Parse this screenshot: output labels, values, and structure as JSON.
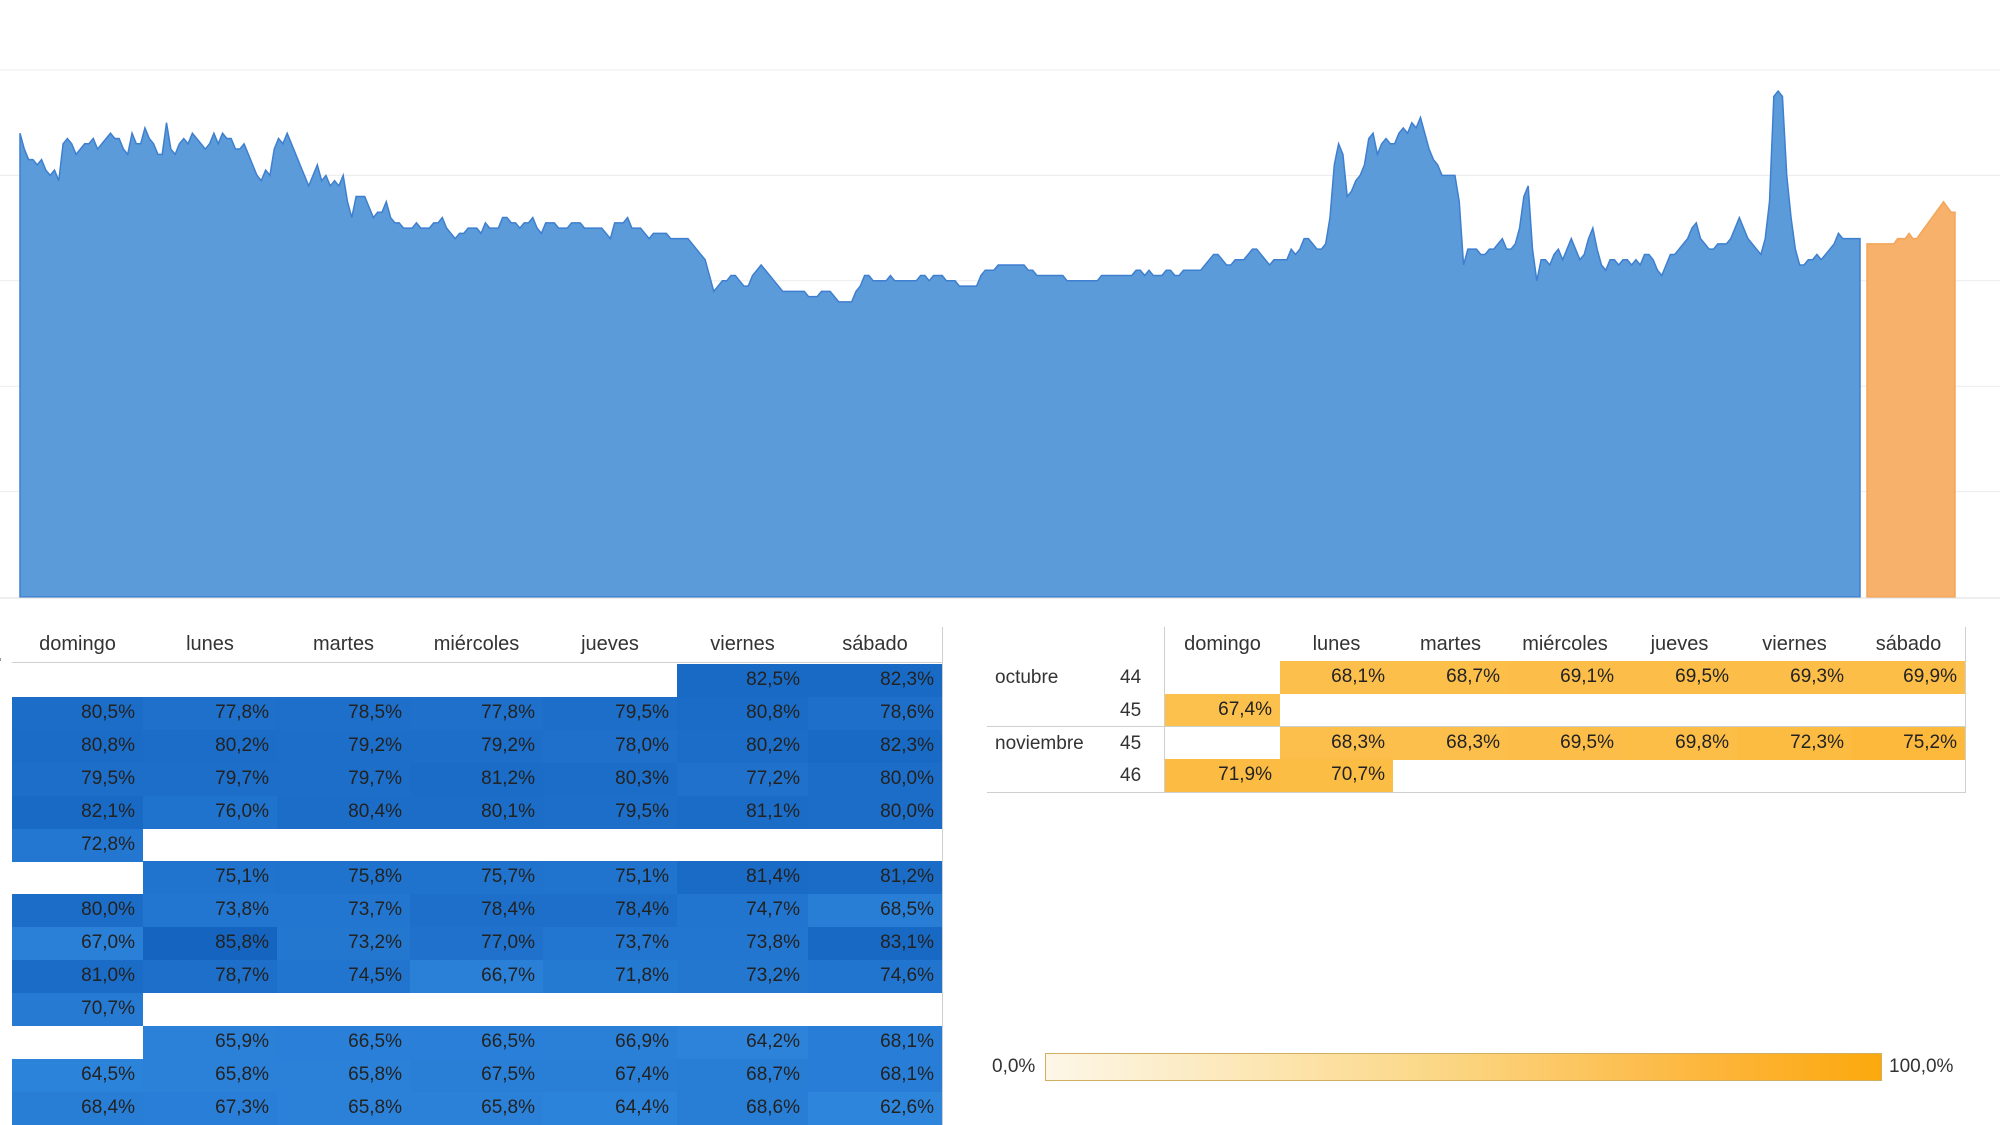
{
  "colors": {
    "actual": "#5b9bd9",
    "actual_line": "#3f7fcf",
    "forecast": "#f7b16a",
    "blue_scale": [
      "#2f86dd",
      "#1565c0"
    ],
    "orange_scale": [
      "#fdf7e8",
      "#fca90d"
    ]
  },
  "chart_data": [
    {
      "type": "area",
      "title": "",
      "xlabel": "",
      "ylabel": "",
      "grid": true,
      "ylim": [
        0,
        100
      ],
      "series": [
        {
          "values": [
            88,
            85,
            83,
            83,
            82,
            83,
            81,
            80,
            81,
            79,
            86,
            87,
            86,
            84,
            85,
            86,
            86,
            87,
            85,
            86,
            87,
            88,
            87,
            87,
            85,
            84,
            88,
            86,
            86,
            89,
            87,
            86,
            84,
            84,
            90,
            85,
            84,
            86,
            87,
            86,
            88,
            87,
            86,
            85,
            86,
            88,
            86,
            88,
            87,
            87,
            85,
            85,
            86,
            84,
            82,
            80,
            79,
            81,
            80,
            85,
            87,
            86,
            88,
            86,
            84,
            82,
            80,
            78,
            80,
            82,
            79,
            80,
            78,
            79,
            78,
            80,
            75,
            72,
            76,
            76,
            76,
            74,
            72,
            73,
            73,
            75,
            72,
            71,
            71,
            70,
            70,
            70,
            71,
            70,
            70,
            70,
            71,
            71,
            72,
            70,
            69,
            68,
            69,
            69,
            70,
            70,
            70,
            69,
            71,
            70,
            70,
            70,
            72,
            72,
            71,
            71,
            70,
            71,
            71,
            72,
            70,
            69,
            71,
            71,
            71,
            70,
            70,
            70,
            71,
            71,
            71,
            70,
            70,
            70,
            70,
            70,
            69,
            68,
            71,
            71,
            71,
            72,
            70,
            70,
            70,
            69,
            68,
            69,
            69,
            69,
            69,
            68,
            68,
            68,
            68,
            68,
            67,
            66,
            65,
            64,
            61,
            58,
            59,
            60,
            60,
            61,
            61,
            60,
            59,
            59,
            61,
            62,
            63,
            62,
            61,
            60,
            59,
            58,
            58,
            58,
            58,
            58,
            58,
            57,
            57,
            57,
            58,
            58,
            58,
            57,
            56,
            56,
            56,
            56,
            58,
            59,
            61,
            61,
            60,
            60,
            60,
            60,
            61,
            60,
            60,
            60,
            60,
            60,
            60,
            61,
            61,
            60,
            61,
            61,
            61,
            60,
            60,
            60,
            59,
            59,
            59,
            59,
            59,
            61,
            62,
            62,
            62,
            63,
            63,
            63,
            63,
            63,
            63,
            63,
            62,
            62,
            61,
            61,
            61,
            61,
            61,
            61,
            61,
            60,
            60,
            60,
            60,
            60,
            60,
            60,
            60,
            61,
            61,
            61,
            61,
            61,
            61,
            61,
            61,
            62,
            62,
            61,
            62,
            61,
            61,
            61,
            62,
            62,
            61,
            61,
            62,
            62,
            62,
            62,
            62,
            63,
            64,
            65,
            65,
            64,
            63,
            63,
            64,
            64,
            64,
            65,
            66,
            66,
            65,
            64,
            63,
            64,
            64,
            64,
            64,
            66,
            65,
            66,
            68,
            68,
            67,
            66,
            66,
            67,
            72,
            82,
            86,
            84,
            76,
            77,
            79,
            80,
            82,
            87,
            88,
            84,
            86,
            87,
            86,
            86,
            88,
            89,
            88,
            90,
            89,
            91,
            88,
            85,
            83,
            82,
            80,
            80,
            80,
            80,
            75,
            63,
            66,
            66,
            66,
            65,
            65,
            66,
            66,
            67,
            68,
            66,
            66,
            67,
            70,
            76,
            78,
            66,
            60,
            64,
            64,
            63,
            65,
            66,
            64,
            66,
            68,
            66,
            64,
            65,
            68,
            70,
            66,
            63,
            62,
            64,
            64,
            63,
            64,
            64,
            63,
            64,
            63,
            65,
            65,
            64,
            62,
            61,
            63,
            65,
            65,
            66,
            67,
            68,
            70,
            71,
            68,
            67,
            66,
            66,
            67,
            67,
            67,
            68,
            70,
            72,
            70,
            68,
            67,
            66,
            65,
            68,
            75,
            95,
            96,
            95,
            80,
            72,
            66,
            63,
            63,
            64,
            64,
            65,
            64,
            65,
            66,
            67,
            69,
            68,
            68,
            68,
            68,
            68
          ],
          "color": "#5b9bd9"
        },
        {
          "values": [
            67,
            67,
            67,
            67,
            67,
            67,
            67,
            67,
            68,
            68,
            68,
            69,
            68,
            68,
            69,
            70,
            71,
            72,
            73,
            74,
            75,
            74,
            73,
            73
          ],
          "color": "#f7b16a"
        }
      ]
    },
    {
      "type": "heatmap",
      "columns": [
        "domingo",
        "lunes",
        "martes",
        "miércoles",
        "jueves",
        "viernes",
        "sábado"
      ],
      "rows": [
        [
          "",
          "",
          "",
          "",
          "",
          "82,5%",
          "82,3%"
        ],
        [
          "80,5%",
          "77,8%",
          "78,5%",
          "77,8%",
          "79,5%",
          "80,8%",
          "78,6%"
        ],
        [
          "80,8%",
          "80,2%",
          "79,2%",
          "79,2%",
          "78,0%",
          "80,2%",
          "82,3%"
        ],
        [
          "79,5%",
          "79,7%",
          "79,7%",
          "81,2%",
          "80,3%",
          "77,2%",
          "80,0%"
        ],
        [
          "82,1%",
          "76,0%",
          "80,4%",
          "80,1%",
          "79,5%",
          "81,1%",
          "80,0%"
        ],
        [
          "72,8%",
          "",
          "",
          "",
          "",
          "",
          ""
        ],
        [
          "",
          "75,1%",
          "75,8%",
          "75,7%",
          "75,1%",
          "81,4%",
          "81,2%"
        ],
        [
          "80,0%",
          "73,8%",
          "73,7%",
          "78,4%",
          "78,4%",
          "74,7%",
          "68,5%"
        ],
        [
          "67,0%",
          "85,8%",
          "73,2%",
          "77,0%",
          "73,7%",
          "73,8%",
          "83,1%"
        ],
        [
          "81,0%",
          "78,7%",
          "74,5%",
          "66,7%",
          "71,8%",
          "73,2%",
          "74,6%"
        ],
        [
          "70,7%",
          "",
          "",
          "",
          "",
          "",
          ""
        ],
        [
          "",
          "65,9%",
          "66,5%",
          "66,5%",
          "66,9%",
          "64,2%",
          "68,1%"
        ],
        [
          "64,5%",
          "65,8%",
          "65,8%",
          "67,5%",
          "67,4%",
          "68,7%",
          "68,1%"
        ],
        [
          "68,4%",
          "67,3%",
          "65,8%",
          "65,8%",
          "64,4%",
          "68,6%",
          "62,6%"
        ]
      ]
    },
    {
      "type": "heatmap",
      "columns": [
        "domingo",
        "lunes",
        "martes",
        "miércoles",
        "jueves",
        "viernes",
        "sábado"
      ],
      "rows": [
        {
          "month": "octubre",
          "week": "44",
          "cells": [
            "",
            "68,1%",
            "68,7%",
            "69,1%",
            "69,5%",
            "69,3%",
            "69,9%"
          ]
        },
        {
          "month": "",
          "week": "45",
          "cells": [
            "67,4%",
            "",
            "",
            "",
            "",
            "",
            ""
          ]
        },
        {
          "month": "noviembre",
          "week": "45",
          "cells": [
            "",
            "68,3%",
            "68,3%",
            "69,5%",
            "69,8%",
            "72,3%",
            "75,2%"
          ]
        },
        {
          "month": "",
          "week": "46",
          "cells": [
            "71,9%",
            "70,7%",
            "",
            "",
            "",
            "",
            ""
          ]
        }
      ]
    }
  ],
  "legend": {
    "min_label": "0,0%",
    "max_label": "100,0%"
  }
}
